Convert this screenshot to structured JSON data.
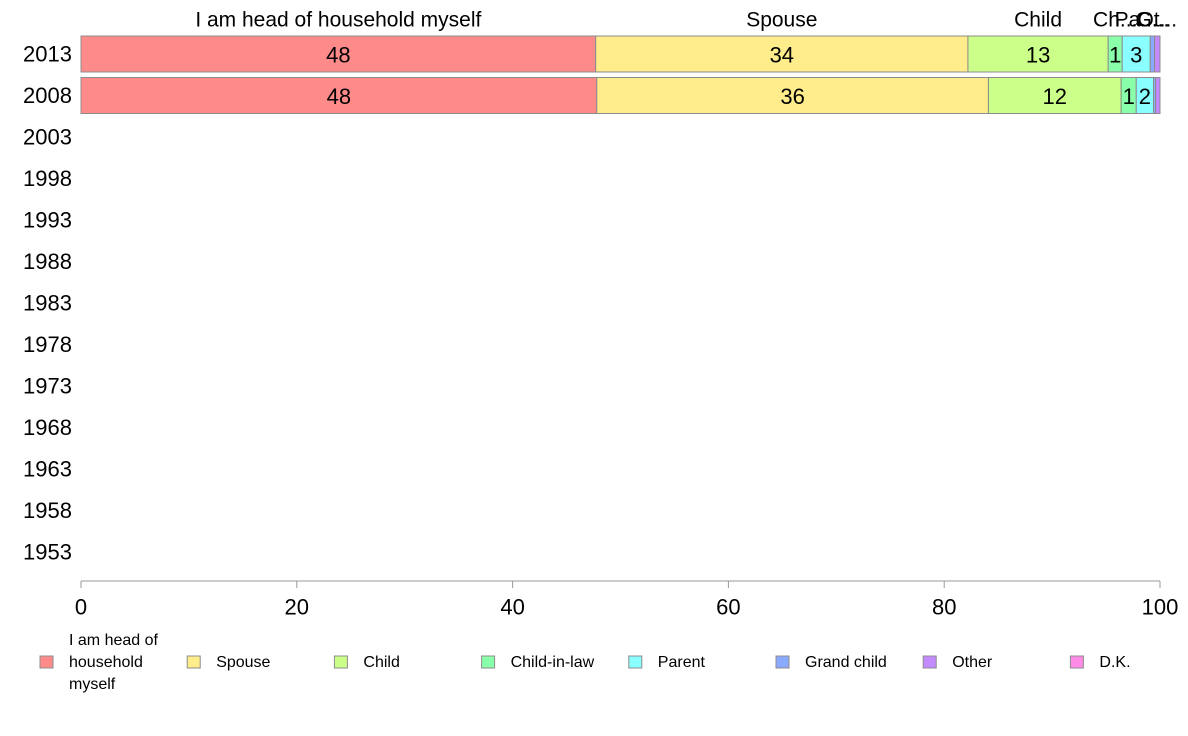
{
  "chart_data": {
    "type": "bar",
    "orientation": "horizontal",
    "stacked": true,
    "categories": [
      "2013",
      "2008",
      "2003",
      "1998",
      "1993",
      "1988",
      "1983",
      "1978",
      "1973",
      "1968",
      "1963",
      "1958",
      "1953"
    ],
    "xlim": [
      0,
      100
    ],
    "xticks": [
      0,
      20,
      40,
      60,
      80,
      100
    ],
    "grid": false,
    "legend_position": "bottom",
    "series": [
      {
        "name": "I am head of household myself",
        "legend_lines": [
          "I am head of",
          "household",
          "myself"
        ],
        "header": "I am head of household myself",
        "color": "#ff8a8a",
        "values": [
          47.7,
          47.8,
          null,
          null,
          null,
          null,
          null,
          null,
          null,
          null,
          null,
          null,
          null
        ],
        "labels": [
          "48",
          "48"
        ]
      },
      {
        "name": "Spouse",
        "legend_lines": [
          "Spouse"
        ],
        "header": "Spouse",
        "color": "#ffec8a",
        "values": [
          34.5,
          36.3,
          null,
          null,
          null,
          null,
          null,
          null,
          null,
          null,
          null,
          null,
          null
        ],
        "labels": [
          "34",
          "36"
        ]
      },
      {
        "name": "Child",
        "legend_lines": [
          "Child"
        ],
        "header": "Child",
        "color": "#ccff8a",
        "values": [
          13.0,
          12.3,
          null,
          null,
          null,
          null,
          null,
          null,
          null,
          null,
          null,
          null,
          null
        ],
        "labels": [
          "13",
          "12"
        ]
      },
      {
        "name": "Child-in-law",
        "legend_lines": [
          "Child-in-law"
        ],
        "header": "Ch...",
        "color": "#8affaa",
        "values": [
          1.3,
          1.4,
          null,
          null,
          null,
          null,
          null,
          null,
          null,
          null,
          null,
          null,
          null
        ],
        "labels": [
          "1",
          "1"
        ]
      },
      {
        "name": "Parent",
        "legend_lines": [
          "Parent"
        ],
        "header": "Pa...",
        "color": "#8affff",
        "values": [
          2.6,
          1.6,
          null,
          null,
          null,
          null,
          null,
          null,
          null,
          null,
          null,
          null,
          null
        ],
        "labels": [
          "3",
          "2"
        ]
      },
      {
        "name": "Grand child",
        "legend_lines": [
          "Grand child"
        ],
        "header": "G...",
        "color": "#8aaaff",
        "values": [
          0.4,
          0.2,
          null,
          null,
          null,
          null,
          null,
          null,
          null,
          null,
          null,
          null,
          null
        ],
        "labels": [
          "",
          ""
        ]
      },
      {
        "name": "Other",
        "legend_lines": [
          "Other"
        ],
        "header": "Ot...",
        "color": "#c48aff",
        "values": [
          0.5,
          0.4,
          null,
          null,
          null,
          null,
          null,
          null,
          null,
          null,
          null,
          null,
          null
        ],
        "labels": [
          "",
          ""
        ]
      },
      {
        "name": "D.K.",
        "legend_lines": [
          "D.K."
        ],
        "header": "",
        "color": "#ff8ae8",
        "values": [
          0.0,
          0.0,
          null,
          null,
          null,
          null,
          null,
          null,
          null,
          null,
          null,
          null,
          null
        ],
        "labels": [
          "",
          ""
        ]
      }
    ]
  }
}
